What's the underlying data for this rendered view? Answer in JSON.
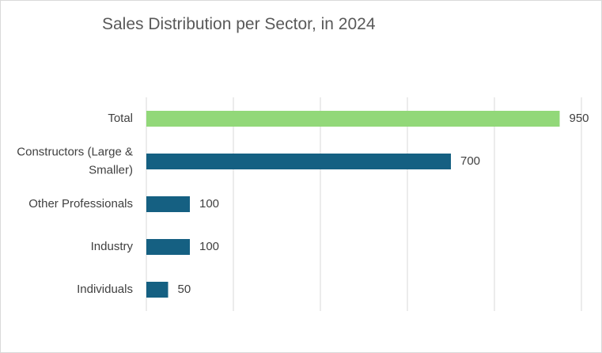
{
  "chart_data": {
    "type": "bar",
    "orientation": "horizontal",
    "title": "Sales Distribution per Sector, in 2024",
    "categories": [
      [
        "Total"
      ],
      [
        "Constructors (Large &",
        "Smaller)"
      ],
      [
        "Other Professionals"
      ],
      [
        "Industry"
      ],
      [
        "Individuals"
      ]
    ],
    "values": [
      950,
      700,
      100,
      100,
      50
    ],
    "colors": [
      "#92d879",
      "#156082",
      "#156082",
      "#156082",
      "#156082"
    ],
    "xlim": [
      0,
      1000
    ],
    "x_gridlines": [
      0,
      200,
      400,
      600,
      800,
      1000
    ],
    "grid": true,
    "legend": "none",
    "data_labels": true
  }
}
